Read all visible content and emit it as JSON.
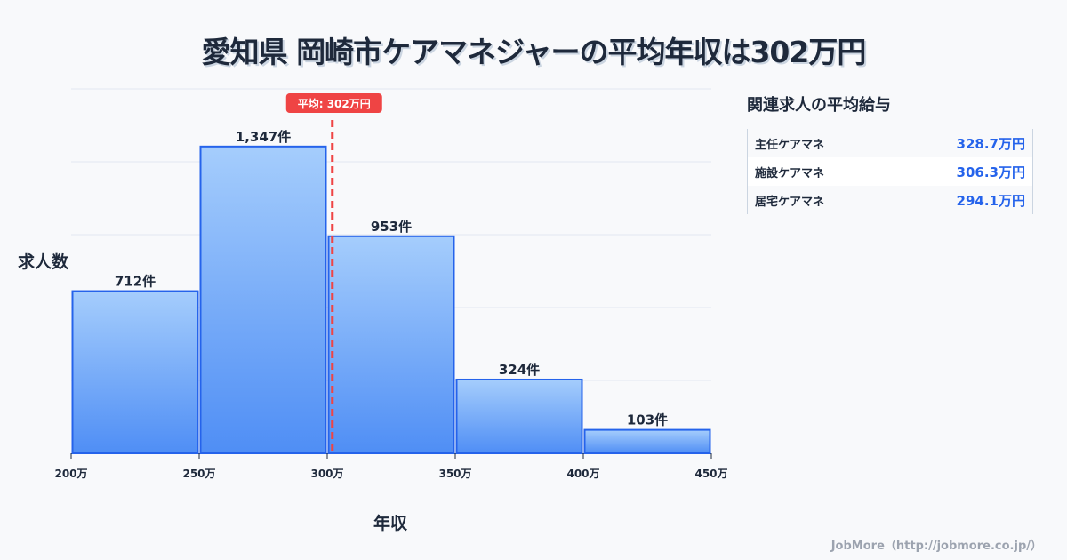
{
  "title": "愛知県 岡崎市ケアマネジャーの平均年収は302万円",
  "chart_data": {
    "type": "bar",
    "title": "愛知県 岡崎市ケアマネジャーの平均年収は302万円",
    "xlabel": "年収",
    "ylabel": "求人数",
    "bins": [
      [
        200,
        250
      ],
      [
        250,
        300
      ],
      [
        300,
        350
      ],
      [
        350,
        400
      ],
      [
        400,
        450
      ]
    ],
    "values": [
      712,
      1347,
      953,
      324,
      103
    ],
    "value_labels": [
      "712件",
      "1,347件",
      "953件",
      "324件",
      "103件"
    ],
    "x_ticks": [
      200,
      250,
      300,
      350,
      400,
      450
    ],
    "x_tick_labels": [
      "200万",
      "250万",
      "300万",
      "350万",
      "400万",
      "450万"
    ],
    "xlim": [
      200,
      450
    ],
    "ylim": [
      0,
      1600
    ],
    "grid": true,
    "mean": 302,
    "mean_label": "平均: 302万円",
    "colors": {
      "bar_top": "#a5cdfc",
      "bar_bottom": "#4f8ef5",
      "bar_stroke": "#2563eb",
      "mean_line": "#ef4444"
    }
  },
  "sidebar": {
    "title": "関連求人の平均給与",
    "items": [
      {
        "name": "主任ケアマネ",
        "value": "328.7万円"
      },
      {
        "name": "施設ケアマネ",
        "value": "306.3万円"
      },
      {
        "name": "居宅ケアマネ",
        "value": "294.1万円"
      }
    ]
  },
  "credit": "JobMore（http://jobmore.co.jp/）"
}
